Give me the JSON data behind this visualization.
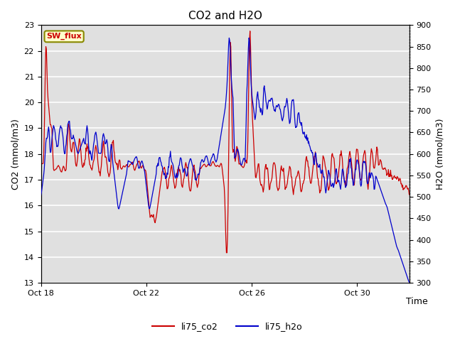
{
  "title": "CO2 and H2O",
  "xlabel": "Time",
  "ylabel_left": "CO2 (mmol/m3)",
  "ylabel_right": "H2O (mmol/m3)",
  "ylim_left": [
    13.0,
    23.0
  ],
  "ylim_right": [
    300,
    900
  ],
  "yticks_left": [
    13.0,
    14.0,
    15.0,
    16.0,
    17.0,
    18.0,
    19.0,
    20.0,
    21.0,
    22.0,
    23.0
  ],
  "yticks_right": [
    300,
    350,
    400,
    450,
    500,
    550,
    600,
    650,
    700,
    750,
    800,
    850,
    900
  ],
  "xtick_labels": [
    "Oct 18",
    "Oct 22",
    "Oct 26",
    "Oct 30"
  ],
  "sw_flux_label": "SW_flux",
  "sw_flux_color": "#cc0000",
  "sw_flux_bg": "#ffffcc",
  "sw_flux_border": "#888800",
  "line_co2_color": "#cc0000",
  "line_h2o_color": "#0000cc",
  "legend_co2": "li75_co2",
  "legend_h2o": "li75_h2o",
  "bg_color": "#e0e0e0",
  "title_fontsize": 11,
  "axis_fontsize": 9,
  "tick_fontsize": 8
}
